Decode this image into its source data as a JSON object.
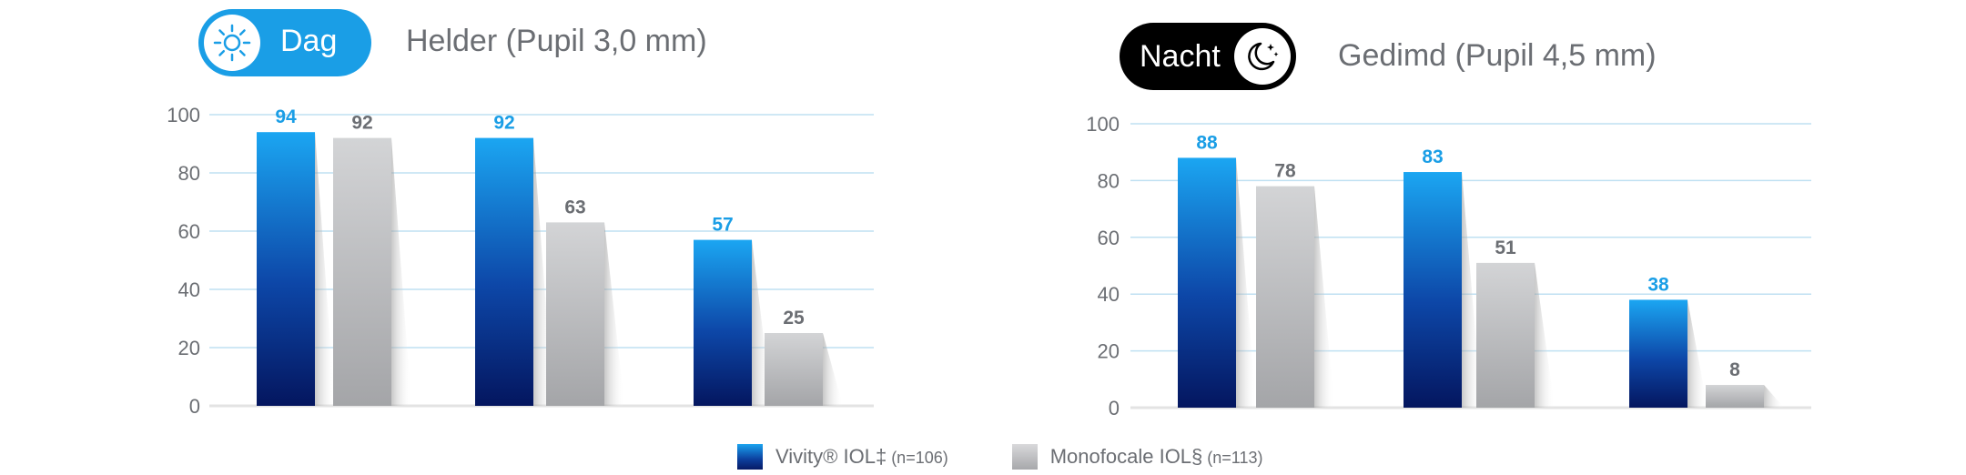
{
  "colors": {
    "vivity": "#1a9ee6",
    "monofocal": "#a9aaad",
    "grid": "#bfe0f2",
    "axis_text": "#6b6e73",
    "day_pill": "#1a9ee6",
    "night_pill": "#000000"
  },
  "panels": [
    {
      "pill_label": "Dag",
      "pill_icon": "sun-icon",
      "subtitle": "Helder (Pupil 3,0 mm)"
    },
    {
      "pill_label": "Nacht",
      "pill_icon": "moon-stars-icon",
      "subtitle": "Gedimd (Pupil 4,5 mm)"
    }
  ],
  "legend": [
    {
      "label": "Vivity® IOL‡",
      "suffix": " (n=106)"
    },
    {
      "label": "Monofocale IOL§",
      "suffix": " (n=113)"
    }
  ],
  "chart_data": [
    {
      "type": "bar",
      "title": "Helder (Pupil 3,0 mm)",
      "categories": [
        "",
        "",
        ""
      ],
      "series": [
        {
          "name": "Vivity® IOL‡ (n=106)",
          "values": [
            94,
            92,
            57
          ]
        },
        {
          "name": "Monofocale IOL§ (n=113)",
          "values": [
            92,
            63,
            25
          ]
        }
      ],
      "yticks": [
        0,
        20,
        40,
        60,
        80,
        100
      ],
      "ylim": [
        0,
        100
      ],
      "grid": true
    },
    {
      "type": "bar",
      "title": "Gedimd (Pupil 4,5 mm)",
      "categories": [
        "",
        "",
        ""
      ],
      "series": [
        {
          "name": "Vivity® IOL‡ (n=106)",
          "values": [
            88,
            83,
            38
          ]
        },
        {
          "name": "Monofocale IOL§ (n=113)",
          "values": [
            78,
            51,
            8
          ]
        }
      ],
      "yticks": [
        0,
        20,
        40,
        60,
        80,
        100
      ],
      "ylim": [
        0,
        100
      ],
      "grid": true
    }
  ]
}
